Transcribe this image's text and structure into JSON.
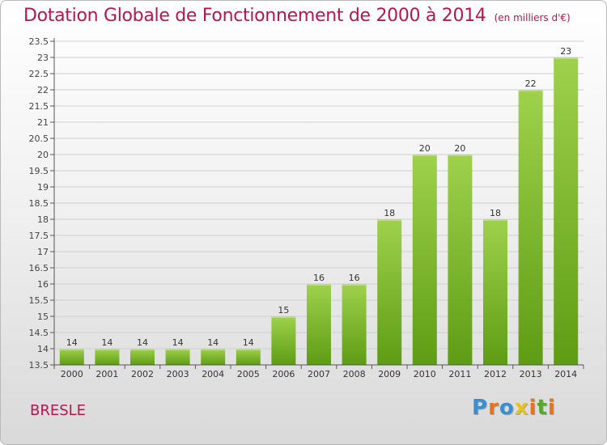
{
  "header": {
    "title": "Dotation Globale de Fonctionnement de 2000 à 2014",
    "subtitle": "(en milliers d'€)"
  },
  "footer": {
    "commune": "BRESLE",
    "logo": "Proxiti",
    "logo_colors": [
      "#3a8fd1",
      "#e8731a",
      "#3a8fd1",
      "#e8c21a",
      "#e8731a",
      "#5aa832",
      "#e8731a"
    ]
  },
  "chart_data": {
    "type": "bar",
    "categories": [
      "2000",
      "2001",
      "2002",
      "2003",
      "2004",
      "2005",
      "2006",
      "2007",
      "2008",
      "2009",
      "2010",
      "2011",
      "2012",
      "2013",
      "2014"
    ],
    "values": [
      14,
      14,
      14,
      14,
      14,
      14,
      15,
      16,
      16,
      18,
      20,
      20,
      18,
      22,
      23
    ],
    "data_labels": [
      "14",
      "14",
      "14",
      "14",
      "14",
      "14",
      "15",
      "16",
      "16",
      "18",
      "20",
      "20",
      "18",
      "22",
      "23"
    ],
    "y_ticks": [
      "13.5",
      "14",
      "14.5",
      "15",
      "15.5",
      "16",
      "16.5",
      "17",
      "17.5",
      "18",
      "18.5",
      "19",
      "19.5",
      "20",
      "20.5",
      "21",
      "21.5",
      "22",
      "22.5",
      "23",
      "23.5"
    ],
    "ylim": [
      13.5,
      23.5
    ],
    "grid": true,
    "colors": {
      "bar_top": "#9fd14c",
      "bar_bottom": "#5e9c14",
      "grid": "#cfcfcf",
      "axis": "#555555"
    }
  }
}
